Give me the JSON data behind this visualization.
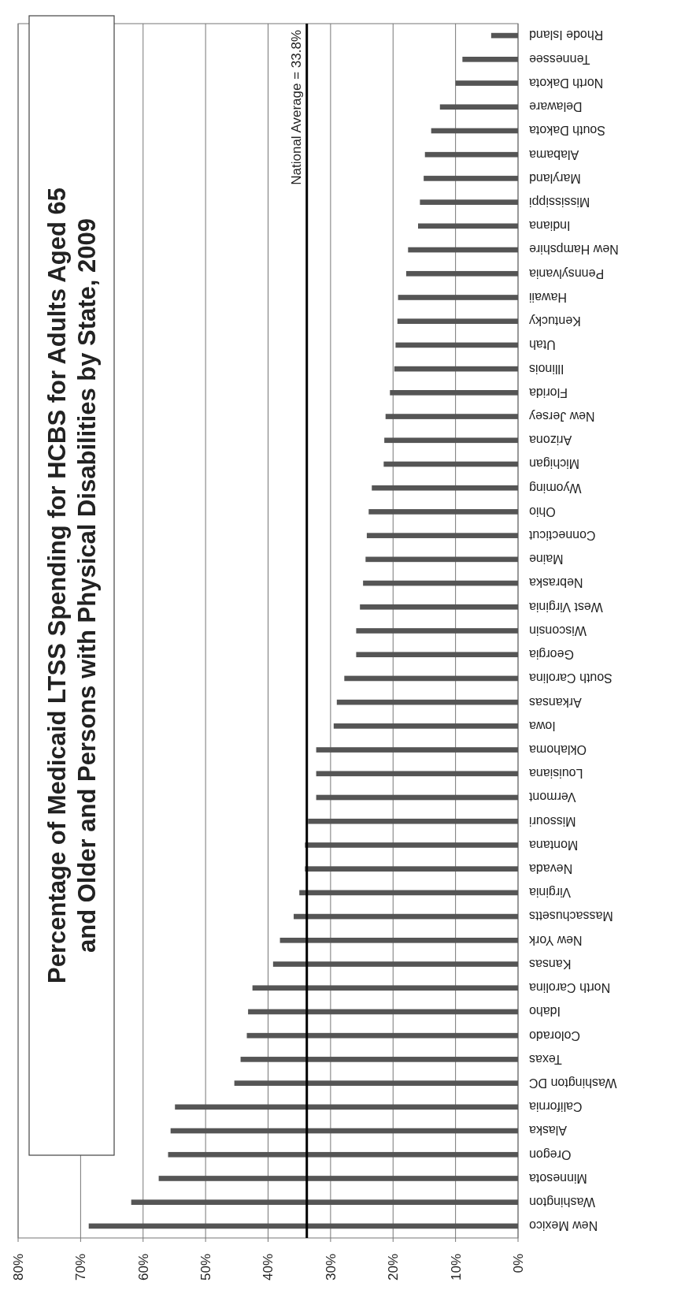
{
  "chart_data": {
    "type": "bar",
    "orientation": "horizontal",
    "title": "Percentage of Medicaid LTSS Spending for HCBS for Adults Aged 65 and Older and Persons with Physical Disabilities by State, 2009",
    "categories": [
      "Rhode Island",
      "Tennessee",
      "North Dakota",
      "Delaware",
      "South Dakota",
      "Alabama",
      "Maryland",
      "Mississippi",
      "Indiana",
      "New Hampshire",
      "Pennsylvania",
      "Hawaii",
      "Kentucky",
      "Utah",
      "Illinois",
      "Florida",
      "New Jersey",
      "Arizona",
      "Michigan",
      "Wyoming",
      "Ohio",
      "Connecticut",
      "Maine",
      "Nebraska",
      "West Virginia",
      "Wisconsin",
      "Georgia",
      "South Carolina",
      "Arkansas",
      "Iowa",
      "Oklahoma",
      "Louisiana",
      "Vermont",
      "Missouri",
      "Montana",
      "Nevada",
      "Virginia",
      "Massachusetts",
      "New York",
      "Kansas",
      "North Carolina",
      "Idaho",
      "Colorado",
      "Texas",
      "Washington DC",
      "California",
      "Alaska",
      "Oregon",
      "Minnesota",
      "Washington",
      "New Mexico"
    ],
    "values": [
      4.3,
      8.9,
      10.0,
      12.5,
      13.9,
      14.9,
      15.1,
      15.7,
      16.0,
      17.6,
      17.9,
      19.2,
      19.3,
      19.6,
      19.8,
      20.5,
      21.2,
      21.4,
      21.5,
      23.4,
      23.9,
      24.2,
      24.4,
      24.8,
      25.3,
      25.9,
      25.9,
      27.8,
      29.0,
      29.5,
      32.3,
      32.3,
      32.3,
      33.6,
      34.1,
      34.1,
      35.0,
      35.9,
      38.1,
      39.2,
      42.5,
      43.2,
      43.4,
      44.4,
      45.4,
      54.9,
      55.6,
      56.0,
      57.5,
      61.9,
      68.7
    ],
    "color": "#555555",
    "xlim": [
      80,
      0
    ],
    "xticks": [
      {
        "value": 80,
        "label": "80%"
      },
      {
        "value": 70,
        "label": "70%"
      },
      {
        "value": 60,
        "label": "60%"
      },
      {
        "value": 50,
        "label": "50%"
      },
      {
        "value": 40,
        "label": "40%"
      },
      {
        "value": 30,
        "label": "30%"
      },
      {
        "value": 20,
        "label": "20%"
      },
      {
        "value": 10,
        "label": "10%"
      },
      {
        "value": 0,
        "label": "0%"
      }
    ],
    "grid": "x",
    "ref_lines": [
      {
        "axis": "x",
        "value": 33.8,
        "label": "National Average = 33.8%",
        "color": "#000000"
      }
    ]
  }
}
